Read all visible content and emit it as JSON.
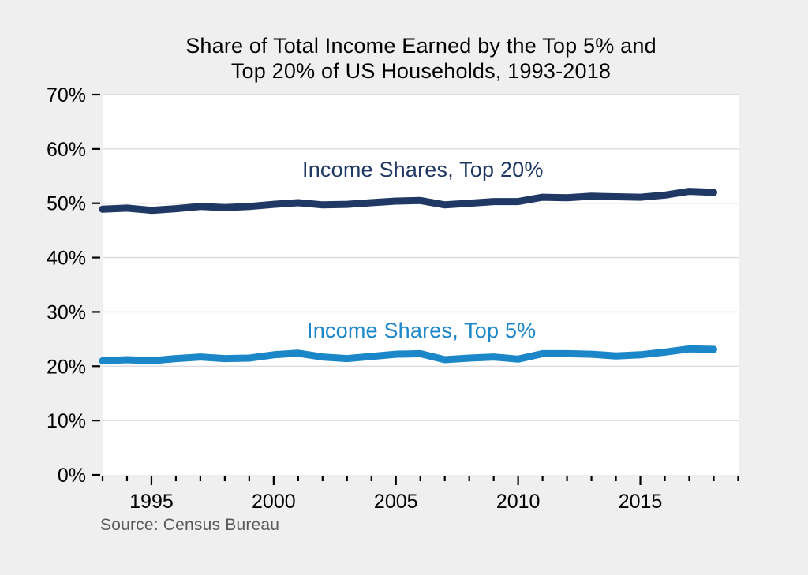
{
  "page": {
    "background_color": "#EFEFEF",
    "plot_background_color": "#FFFFFF",
    "gridline_color": "#DCDCDC",
    "tick_color": "#000000",
    "source_text_color": "#595959"
  },
  "chart": {
    "title_line1": "Share of Total Income Earned by the Top 5% and",
    "title_line2": "Top 20% of US Households, 1993-2018",
    "source": "Source: Census Bureau"
  },
  "chart_data": {
    "type": "line",
    "title": "Share of Total Income Earned by the Top 5% and Top 20% of US Households, 1993-2018",
    "xlabel": "",
    "ylabel": "",
    "grid": "horizontal",
    "legend_position": "inline-labels",
    "xlim": [
      1993,
      2019.05
    ],
    "ylim": [
      0,
      70
    ],
    "x": [
      1993,
      1994,
      1995,
      1996,
      1997,
      1998,
      1999,
      2000,
      2001,
      2002,
      2003,
      2004,
      2005,
      2006,
      2007,
      2008,
      2009,
      2010,
      2011,
      2012,
      2013,
      2014,
      2015,
      2016,
      2017,
      2018
    ],
    "series": [
      {
        "name": "Top 20%",
        "label": "Income Shares, Top 20%",
        "color": "#203864",
        "values": [
          48.9,
          49.1,
          48.7,
          49.0,
          49.4,
          49.2,
          49.4,
          49.8,
          50.1,
          49.7,
          49.8,
          50.1,
          50.4,
          50.5,
          49.7,
          50.0,
          50.3,
          50.3,
          51.1,
          51.0,
          51.3,
          51.2,
          51.1,
          51.5,
          52.2,
          52.0
        ]
      },
      {
        "name": "Top 5%",
        "label": "Income Shares, Top 5%",
        "color": "#1B87C9",
        "values": [
          21.0,
          21.2,
          21.0,
          21.4,
          21.7,
          21.4,
          21.5,
          22.1,
          22.4,
          21.7,
          21.4,
          21.8,
          22.2,
          22.3,
          21.2,
          21.5,
          21.7,
          21.3,
          22.3,
          22.3,
          22.2,
          21.9,
          22.1,
          22.6,
          23.2,
          23.1
        ]
      }
    ],
    "y_ticks": {
      "values": [
        0,
        10,
        20,
        30,
        40,
        50,
        60,
        70
      ],
      "labels": [
        "0%",
        "10%",
        "20%",
        "30%",
        "40%",
        "50%",
        "60%",
        "70%"
      ]
    },
    "x_ticks": {
      "minor_start": 1993,
      "minor_end": 2019,
      "major": {
        "values": [
          1995,
          2000,
          2005,
          2010,
          2015
        ],
        "labels": [
          "1995",
          "2000",
          "2005",
          "2010",
          "2015"
        ]
      }
    },
    "source": "Source: Census Bureau"
  }
}
